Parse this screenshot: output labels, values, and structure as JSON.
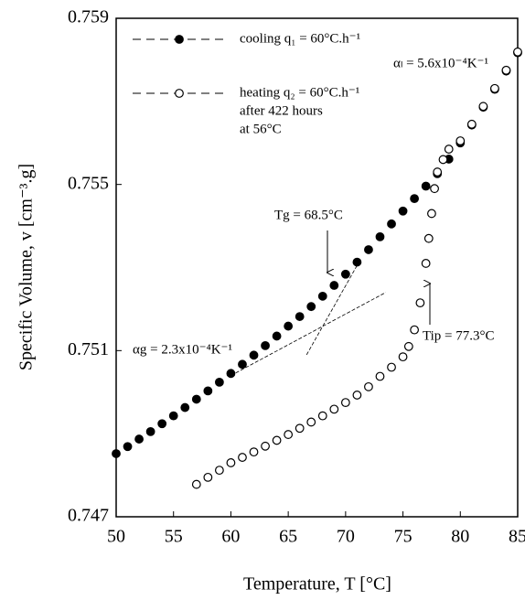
{
  "chart_data": {
    "type": "scatter",
    "x_label": "Temperature, T [°C]",
    "y_label": "Specific Volume, v [cm⁻³.g]",
    "xlim": [
      50,
      85
    ],
    "xticks": [
      50,
      55,
      60,
      65,
      70,
      75,
      80,
      85
    ],
    "ylim": [
      0.747,
      0.759
    ],
    "yticks": [
      0.747,
      0.751,
      0.755,
      0.759
    ],
    "series": [
      {
        "name": "cooling q₁ = 60°C.h⁻¹",
        "color": "#000000",
        "filled": true,
        "x": [
          50,
          51,
          52,
          53,
          54,
          55,
          56,
          57,
          58,
          59,
          60,
          61,
          62,
          63,
          64,
          65,
          66,
          67,
          68,
          69,
          70,
          71,
          72,
          73,
          74,
          75,
          76,
          77,
          78,
          79,
          80,
          81,
          82,
          83,
          84,
          85
        ],
        "values": [
          0.74852,
          0.74869,
          0.74887,
          0.74905,
          0.74924,
          0.74943,
          0.74963,
          0.74983,
          0.75003,
          0.75024,
          0.75045,
          0.75067,
          0.75089,
          0.75112,
          0.75135,
          0.75159,
          0.75182,
          0.75206,
          0.75231,
          0.75257,
          0.75284,
          0.75313,
          0.75343,
          0.75374,
          0.75405,
          0.75436,
          0.75466,
          0.75496,
          0.75526,
          0.75561,
          0.756,
          0.75643,
          0.75686,
          0.75729,
          0.75773,
          0.75817
        ]
      },
      {
        "name": "heating q₂ = 60°C.h⁻¹",
        "color": "#000000",
        "filled": false,
        "x": [
          57,
          58,
          59,
          60,
          61,
          62,
          63,
          64,
          65,
          66,
          67,
          68,
          69,
          70,
          71,
          72,
          73,
          74,
          75,
          75.5,
          76,
          76.5,
          77,
          77.25,
          77.5,
          77.75,
          78,
          78.5,
          79,
          80,
          81,
          82,
          83,
          84,
          85
        ],
        "values": [
          0.74778,
          0.74795,
          0.74812,
          0.7483,
          0.74843,
          0.74856,
          0.7487,
          0.74884,
          0.74898,
          0.74913,
          0.74928,
          0.74943,
          0.74959,
          0.74975,
          0.74993,
          0.75013,
          0.75038,
          0.7506,
          0.75085,
          0.7511,
          0.7515,
          0.75215,
          0.7531,
          0.7537,
          0.7543,
          0.7549,
          0.7553,
          0.7556,
          0.75585,
          0.75605,
          0.75645,
          0.75688,
          0.75731,
          0.75775,
          0.75819
        ]
      }
    ],
    "legend_note": [
      "after 422 hours",
      "at 56°C"
    ],
    "tangent_lines": [
      {
        "x": [
          60,
          73.5
        ],
        "y": [
          0.7504,
          0.7524
        ]
      },
      {
        "x": [
          66.6,
          71.0
        ],
        "y": [
          0.7509,
          0.75305
        ]
      }
    ],
    "annotations": [
      "αₗ = 5.6x10⁻⁴K⁻¹",
      "Tg = 68.5°C",
      "αg = 2.3x10⁻⁴K⁻¹",
      "Tip = 77.3°C"
    ]
  }
}
